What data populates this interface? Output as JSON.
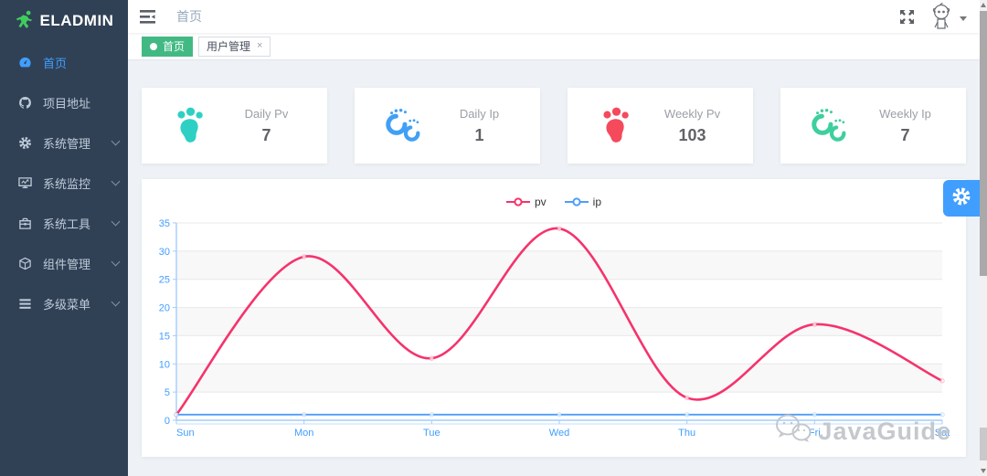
{
  "app": {
    "name": "ELADMIN"
  },
  "sidebar": {
    "bg_color": "#304156",
    "active_color": "#409EFF",
    "items": [
      {
        "label": "首页",
        "icon": "dashboard-icon",
        "active": true,
        "has_arrow": false
      },
      {
        "label": "项目地址",
        "icon": "github-icon",
        "active": false,
        "has_arrow": false
      },
      {
        "label": "系统管理",
        "icon": "gear-icon",
        "active": false,
        "has_arrow": true
      },
      {
        "label": "系统监控",
        "icon": "monitor-icon",
        "active": false,
        "has_arrow": true
      },
      {
        "label": "系统工具",
        "icon": "toolbox-icon",
        "active": false,
        "has_arrow": true
      },
      {
        "label": "组件管理",
        "icon": "component-icon",
        "active": false,
        "has_arrow": true
      },
      {
        "label": "多级菜单",
        "icon": "list-icon",
        "active": false,
        "has_arrow": true
      }
    ]
  },
  "topbar": {
    "breadcrumb": "首页"
  },
  "tabs": [
    {
      "label": "首页",
      "active": true,
      "closable": false
    },
    {
      "label": "用户管理",
      "active": false,
      "closable": true,
      "close_glyph": "×"
    }
  ],
  "stats": [
    {
      "label": "Daily Pv",
      "value": "7",
      "icon": "footprint-icon",
      "color": "#2ed0c4"
    },
    {
      "label": "Daily Ip",
      "value": "1",
      "icon": "footprints-icon",
      "color": "#40a0f5"
    },
    {
      "label": "Weekly Pv",
      "value": "103",
      "icon": "footprint-icon",
      "color": "#f5495c"
    },
    {
      "label": "Weekly Ip",
      "value": "7",
      "icon": "footprints-icon",
      "color": "#3ecf9e"
    }
  ],
  "chart_data": {
    "type": "line",
    "x": [
      "Sun",
      "Mon",
      "Tue",
      "Wed",
      "Thu",
      "Fri",
      "Sat"
    ],
    "series": [
      {
        "name": "pv",
        "values": [
          1,
          29,
          11,
          34,
          4,
          17,
          7
        ],
        "color": "#F5336C",
        "smooth": true
      },
      {
        "name": "ip",
        "values": [
          1,
          1,
          1,
          1,
          1,
          1,
          1
        ],
        "color": "#4f9ef8",
        "smooth": false
      }
    ],
    "ylim": [
      0,
      35
    ],
    "yticks": [
      0,
      5,
      10,
      15,
      20,
      25,
      30,
      35
    ],
    "title": "",
    "xlabel": "",
    "ylabel": "",
    "grid": true,
    "legend_position": "top-center",
    "axis_label_color": "#409EFF",
    "axis_line_color": "#a3cdfc"
  },
  "watermark": {
    "text": "JavaGuide",
    "icon": "wechat-icon"
  },
  "settings_fab": {
    "icon": "gear-icon",
    "color": "#409EFF"
  }
}
